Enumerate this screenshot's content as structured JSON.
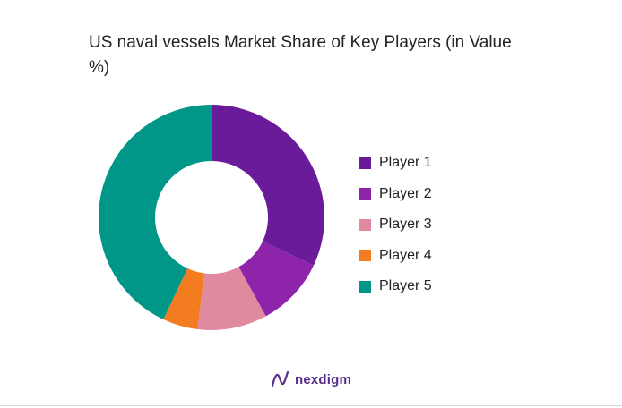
{
  "chart_data": {
    "type": "pie",
    "variant": "donut",
    "title": "US naval vessels Market Share of Key Players (in Value %)",
    "categories": [
      "Player 1",
      "Player 2",
      "Player 3",
      "Player 4",
      "Player 5"
    ],
    "values": [
      32,
      10,
      10,
      5,
      43
    ],
    "colors": [
      "#6a1b9a",
      "#8e24aa",
      "#e08aa0",
      "#f47c20",
      "#009688"
    ],
    "legend_position": "right",
    "start_angle_deg": 0,
    "direction": "clockwise"
  },
  "brand": {
    "name": "nexdigm",
    "icon": "nexdigm-logo-icon",
    "color": "#5a2d8c"
  }
}
